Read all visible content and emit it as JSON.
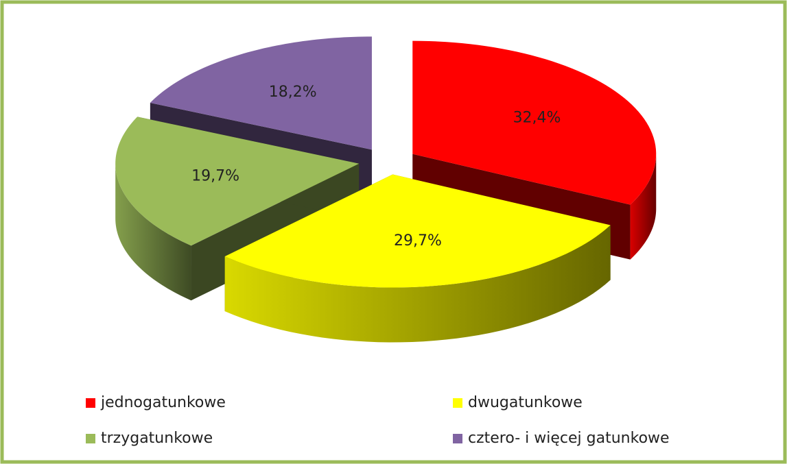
{
  "chart_data": {
    "type": "pie",
    "categories": [
      "jednogatunkowe",
      "dwugatunkowe",
      "trzygatunkowe",
      "cztero- i więcej gatunkowe"
    ],
    "values": [
      32.4,
      29.7,
      19.7,
      18.2
    ],
    "value_labels": [
      "32,4%",
      "29,7%",
      "19,7%",
      "18,2%"
    ],
    "colors": [
      "#ff0000",
      "#ffff00",
      "#9bbb59",
      "#8064a2"
    ],
    "legend": "bottom"
  }
}
